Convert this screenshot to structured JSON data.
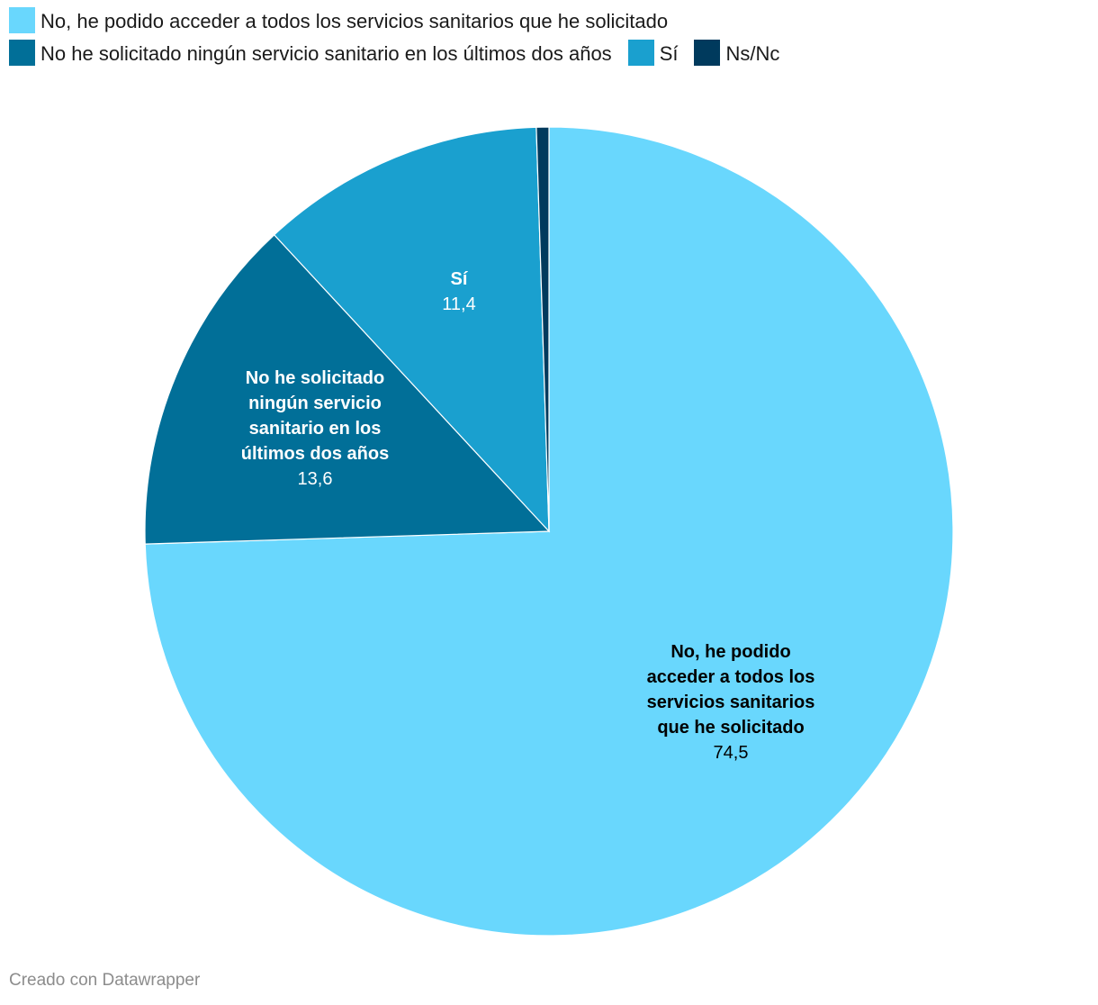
{
  "chart_data": {
    "type": "pie",
    "title": "",
    "slices": [
      {
        "label": "No, he podido acceder a todos los servicios sanitarios que he solicitado",
        "value": 74.5,
        "value_label": "74,5",
        "color": "#69d7fd",
        "text_color": "#000000",
        "label_lines": [
          "No, he podido",
          "acceder a todos los",
          "servicios sanitarios",
          "que he solicitado"
        ]
      },
      {
        "label": "No he solicitado ningún servicio sanitario en los últimos dos años",
        "value": 13.6,
        "value_label": "13,6",
        "color": "#016f98",
        "text_color": "#ffffff",
        "label_lines": [
          "No he solicitado",
          "ningún servicio",
          "sanitario en los",
          "últimos dos años"
        ]
      },
      {
        "label": "Sí",
        "value": 11.4,
        "value_label": "11,4",
        "color": "#1aa0cf",
        "text_color": "#ffffff",
        "label_lines": [
          "Sí"
        ]
      },
      {
        "label": "Ns/Nc",
        "value": 0.5,
        "value_label": "",
        "color": "#003a5d",
        "text_color": "#ffffff",
        "label_lines": []
      }
    ],
    "legend_position": "top-left"
  },
  "legend": [
    {
      "label": "No, he podido acceder a todos los servicios sanitarios que he solicitado",
      "color": "#69d7fd"
    },
    {
      "label": "No he solicitado ningún servicio sanitario en los últimos dos años",
      "color": "#016f98"
    },
    {
      "label": "Sí",
      "color": "#1aa0cf"
    },
    {
      "label": "Ns/Nc",
      "color": "#003a5d"
    }
  ],
  "footer": {
    "credit": "Creado con Datawrapper"
  }
}
